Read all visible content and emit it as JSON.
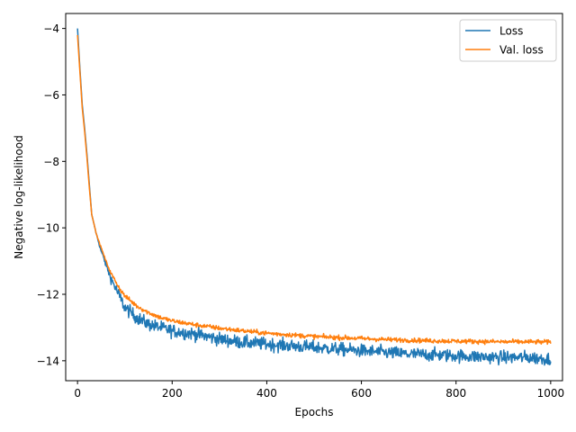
{
  "chart_data": {
    "type": "line",
    "title": "",
    "xlabel": "Epochs",
    "ylabel": "Negative log-likelihood",
    "xlim": [
      -25,
      1025
    ],
    "ylim": [
      -14.6,
      -3.55
    ],
    "xticks": [
      0,
      200,
      400,
      600,
      800,
      1000
    ],
    "yticks": [
      -4,
      -6,
      -8,
      -10,
      -12,
      -14
    ],
    "grid": false,
    "legend_position": "top-right",
    "series": [
      {
        "name": "Loss",
        "color": "#1f77b4",
        "noise": 0.14,
        "points": [
          [
            0,
            -4.0
          ],
          [
            5,
            -5.2
          ],
          [
            10,
            -6.3
          ],
          [
            15,
            -7.0
          ],
          [
            20,
            -7.8
          ],
          [
            25,
            -8.7
          ],
          [
            30,
            -9.6
          ],
          [
            40,
            -10.2
          ],
          [
            50,
            -10.7
          ],
          [
            60,
            -11.1
          ],
          [
            70,
            -11.5
          ],
          [
            80,
            -11.8
          ],
          [
            90,
            -12.1
          ],
          [
            100,
            -12.4
          ],
          [
            125,
            -12.7
          ],
          [
            150,
            -12.9
          ],
          [
            175,
            -13.0
          ],
          [
            200,
            -13.1
          ],
          [
            250,
            -13.2
          ],
          [
            300,
            -13.35
          ],
          [
            350,
            -13.45
          ],
          [
            400,
            -13.5
          ],
          [
            450,
            -13.55
          ],
          [
            500,
            -13.6
          ],
          [
            550,
            -13.65
          ],
          [
            600,
            -13.7
          ],
          [
            650,
            -13.75
          ],
          [
            700,
            -13.8
          ],
          [
            750,
            -13.82
          ],
          [
            800,
            -13.85
          ],
          [
            850,
            -13.88
          ],
          [
            900,
            -13.9
          ],
          [
            950,
            -13.9
          ],
          [
            1000,
            -13.95
          ]
        ]
      },
      {
        "name": "Val. loss",
        "color": "#ff7f0e",
        "noise": 0.05,
        "points": [
          [
            0,
            -4.2
          ],
          [
            5,
            -5.3
          ],
          [
            10,
            -6.4
          ],
          [
            15,
            -7.1
          ],
          [
            20,
            -7.9
          ],
          [
            25,
            -8.8
          ],
          [
            30,
            -9.6
          ],
          [
            40,
            -10.2
          ],
          [
            50,
            -10.6
          ],
          [
            60,
            -11.0
          ],
          [
            70,
            -11.35
          ],
          [
            80,
            -11.6
          ],
          [
            90,
            -11.85
          ],
          [
            100,
            -12.05
          ],
          [
            125,
            -12.35
          ],
          [
            150,
            -12.55
          ],
          [
            175,
            -12.7
          ],
          [
            200,
            -12.8
          ],
          [
            250,
            -12.92
          ],
          [
            300,
            -13.02
          ],
          [
            350,
            -13.1
          ],
          [
            400,
            -13.17
          ],
          [
            450,
            -13.22
          ],
          [
            500,
            -13.27
          ],
          [
            550,
            -13.3
          ],
          [
            600,
            -13.33
          ],
          [
            650,
            -13.36
          ],
          [
            700,
            -13.38
          ],
          [
            750,
            -13.4
          ],
          [
            800,
            -13.41
          ],
          [
            850,
            -13.42
          ],
          [
            900,
            -13.43
          ],
          [
            950,
            -13.43
          ],
          [
            1000,
            -13.44
          ]
        ]
      }
    ]
  }
}
